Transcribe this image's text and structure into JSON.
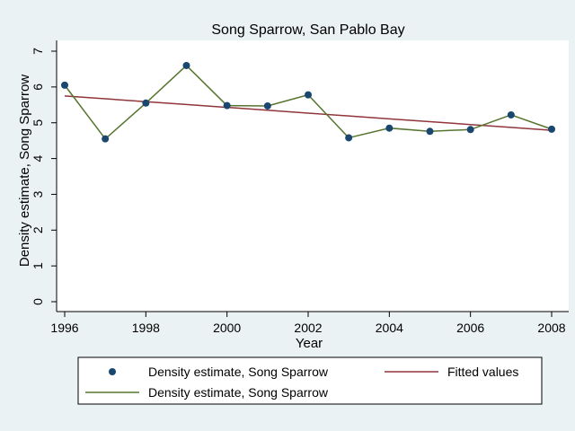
{
  "chart_data": {
    "type": "line",
    "title": "Song Sparrow, San Pablo Bay",
    "xlabel": "Year",
    "ylabel": "Density estimate, Song Sparrow",
    "xlim": [
      1996,
      2008
    ],
    "ylim": [
      0,
      7
    ],
    "xticks": [
      "1996",
      "1998",
      "2000",
      "2002",
      "2004",
      "2006",
      "2008"
    ],
    "yticks": [
      "0",
      "1",
      "2",
      "3",
      "4",
      "5",
      "6",
      "7"
    ],
    "grid": false,
    "legend_position": "bottom",
    "x": [
      1996,
      1997,
      1998,
      1999,
      2000,
      2001,
      2002,
      2003,
      2004,
      2005,
      2006,
      2007,
      2008
    ],
    "series": [
      {
        "name": "Density estimate, Song Sparrow",
        "style": "markers",
        "color": "#1a476f",
        "values": [
          6.05,
          4.55,
          5.55,
          6.6,
          5.48,
          5.47,
          5.78,
          4.58,
          4.85,
          4.76,
          4.81,
          5.22,
          4.82
        ]
      },
      {
        "name": "Fitted values",
        "style": "line",
        "color": "#90353b",
        "values": [
          5.75,
          5.67,
          5.59,
          5.51,
          5.43,
          5.35,
          5.27,
          5.19,
          5.11,
          5.03,
          4.95,
          4.87,
          4.79
        ]
      },
      {
        "name": "Density estimate, Song Sparrow",
        "style": "line",
        "color": "#55752f",
        "values": [
          6.05,
          4.55,
          5.55,
          6.6,
          5.48,
          5.47,
          5.78,
          4.58,
          4.85,
          4.76,
          4.81,
          5.22,
          4.82
        ]
      }
    ]
  },
  "colors": {
    "page_background": "#eaf2f3",
    "plot_background": "#ffffff"
  }
}
